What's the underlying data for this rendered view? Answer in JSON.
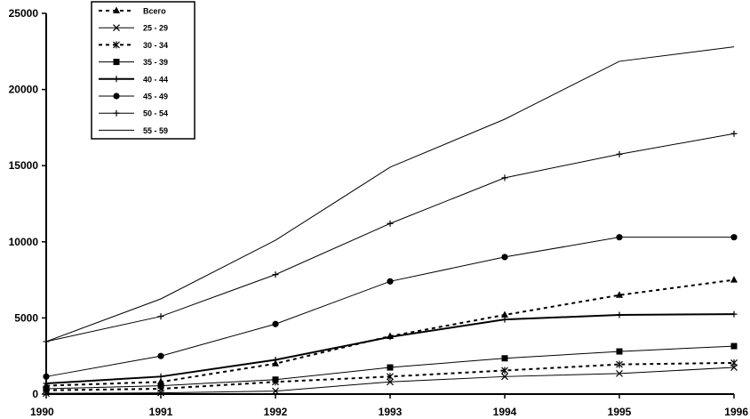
{
  "chart_data": {
    "type": "line",
    "x": [
      1990,
      1991,
      1992,
      1993,
      1994,
      1995,
      1996
    ],
    "xlim": [
      1990,
      1996
    ],
    "ylim": [
      0,
      25000
    ],
    "yticks": [
      0,
      5000,
      10000,
      15000,
      20000,
      25000
    ],
    "grid": false,
    "legend_position": "top-left",
    "series": [
      {
        "name": "Всего",
        "marker": "triangle",
        "line": "dotted",
        "stroke_width": 2,
        "values": [
          550,
          800,
          2000,
          3800,
          5200,
          6500,
          7500
        ]
      },
      {
        "name": "25 - 29",
        "marker": "x",
        "line": "solid",
        "stroke_width": 1,
        "values": [
          50,
          80,
          200,
          800,
          1150,
          1350,
          1750
        ]
      },
      {
        "name": "30 - 34",
        "marker": "star",
        "line": "dotted",
        "stroke_width": 2,
        "values": [
          250,
          350,
          800,
          1150,
          1550,
          1950,
          2050
        ]
      },
      {
        "name": "35 - 39",
        "marker": "square",
        "line": "solid",
        "stroke_width": 1,
        "values": [
          350,
          550,
          950,
          1750,
          2350,
          2800,
          3150
        ]
      },
      {
        "name": "40 - 44",
        "marker": "plus",
        "line": "solid",
        "stroke_width": 2,
        "values": [
          700,
          1150,
          2250,
          3750,
          4900,
          5200,
          5250
        ]
      },
      {
        "name": "45 - 49",
        "marker": "circle",
        "line": "solid",
        "stroke_width": 1,
        "values": [
          1150,
          2500,
          4600,
          7400,
          9000,
          10300,
          10300
        ]
      },
      {
        "name": "50 - 54",
        "marker": "plus",
        "line": "solid",
        "stroke_width": 1,
        "values": [
          3450,
          5100,
          7850,
          11200,
          14200,
          15750,
          17100
        ]
      },
      {
        "name": "55 - 59",
        "marker": "none",
        "line": "solid",
        "stroke_width": 1,
        "values": [
          3450,
          6250,
          10100,
          14900,
          18050,
          21850,
          22800
        ]
      }
    ]
  }
}
